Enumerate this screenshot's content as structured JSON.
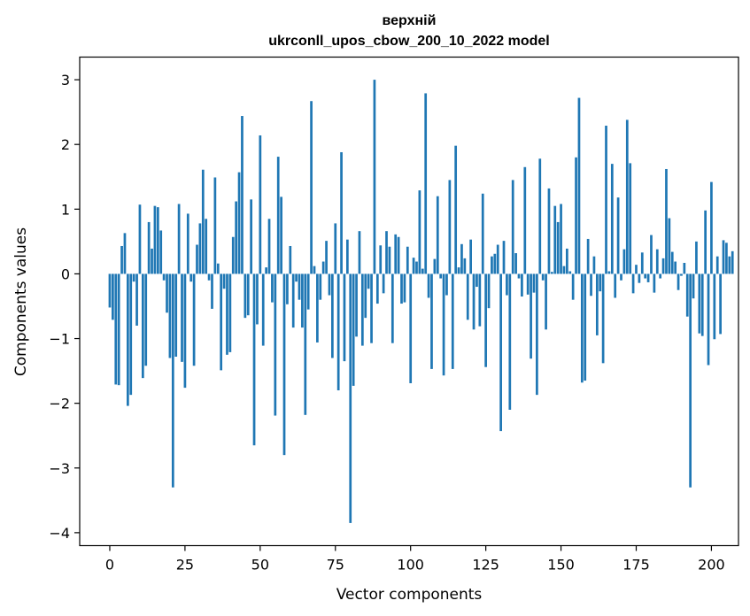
{
  "chart_data": {
    "type": "bar",
    "title_line1": "верхній",
    "title_line2": "ukrconll_upos_cbow_200_10_2022 model",
    "xlabel": "Vector components",
    "ylabel": "Components values",
    "xlim": [
      -10,
      209
    ],
    "ylim": [
      -4.2,
      3.35
    ],
    "xticks": [
      0,
      25,
      50,
      75,
      100,
      125,
      150,
      175,
      200
    ],
    "xtick_labels": [
      "0",
      "25",
      "50",
      "75",
      "100",
      "125",
      "150",
      "175",
      "200"
    ],
    "yticks": [
      -4,
      -3,
      -2,
      -1,
      0,
      1,
      2,
      3
    ],
    "ytick_labels": [
      "−4",
      "−3",
      "−2",
      "−1",
      "0",
      "1",
      "2",
      "3"
    ],
    "grid": false,
    "bar_color": "#1f77b4",
    "values": [
      -0.52,
      -0.71,
      -1.71,
      -1.72,
      0.43,
      0.63,
      -2.04,
      -1.87,
      -0.12,
      -0.8,
      1.07,
      -1.61,
      -1.42,
      0.8,
      0.39,
      1.05,
      1.03,
      0.67,
      -0.1,
      -0.6,
      -1.3,
      -3.3,
      -1.28,
      1.08,
      -1.36,
      -1.76,
      0.93,
      -0.12,
      -1.42,
      0.45,
      0.78,
      1.61,
      0.85,
      -0.1,
      -0.54,
      1.49,
      0.16,
      -1.49,
      -0.23,
      -1.25,
      -1.21,
      0.57,
      1.12,
      1.57,
      2.44,
      -0.68,
      -0.64,
      1.15,
      -2.65,
      -0.78,
      2.14,
      -1.11,
      0.1,
      0.85,
      -0.44,
      -2.19,
      1.81,
      1.19,
      -2.8,
      -0.47,
      0.43,
      -0.83,
      -0.12,
      -0.4,
      -0.83,
      -2.18,
      -0.55,
      2.67,
      0.12,
      -1.06,
      -0.4,
      0.19,
      0.51,
      -0.33,
      -1.3,
      0.78,
      -1.8,
      1.88,
      -1.35,
      0.53,
      -3.85,
      -1.73,
      -0.97,
      0.66,
      -1.11,
      -0.68,
      -0.23,
      -1.07,
      3.0,
      -0.46,
      0.44,
      -0.3,
      0.66,
      0.42,
      -1.07,
      0.61,
      0.57,
      -0.46,
      -0.44,
      0.42,
      -1.69,
      0.25,
      0.19,
      1.29,
      0.08,
      2.79,
      -0.37,
      -1.47,
      0.23,
      1.2,
      -0.07,
      -1.57,
      -0.33,
      1.45,
      -1.47,
      1.98,
      0.1,
      0.46,
      0.24,
      -0.71,
      0.53,
      -0.86,
      -0.2,
      -0.81,
      1.24,
      -1.44,
      -0.53,
      0.27,
      0.31,
      0.45,
      -2.43,
      0.51,
      -0.33,
      -2.1,
      1.45,
      0.32,
      -0.07,
      -0.35,
      1.65,
      -0.32,
      -1.31,
      -0.29,
      -1.87,
      1.78,
      -0.1,
      -0.86,
      1.32,
      0.03,
      1.05,
      0.8,
      1.08,
      0.12,
      0.39,
      0.04,
      -0.4,
      1.8,
      2.72,
      -1.68,
      -1.65,
      0.54,
      -0.34,
      0.27,
      -0.95,
      -0.27,
      -1.38,
      2.29,
      0.04,
      1.7,
      -0.37,
      1.18,
      -0.1,
      0.38,
      2.38,
      1.71,
      -0.3,
      0.14,
      -0.14,
      0.33,
      -0.07,
      -0.13,
      0.6,
      -0.29,
      0.38,
      -0.07,
      0.24,
      1.62,
      0.86,
      0.34,
      0.19,
      -0.25,
      -0.03,
      0.17,
      -0.66,
      -3.3,
      -0.38,
      0.5,
      -0.92,
      -0.96,
      0.98,
      -1.41,
      1.42,
      -1.01,
      0.27,
      -0.93,
      0.52,
      0.48,
      0.27,
      0.35
    ]
  }
}
